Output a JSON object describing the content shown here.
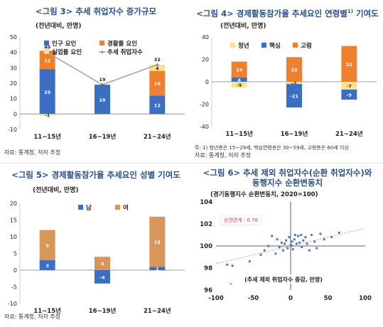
{
  "colors": {
    "blue": "#3a6fc4",
    "orange": "#ee8130",
    "yellow": "#fde28a",
    "tan": "#d9965b",
    "line": "#a6a6a6",
    "title": "#2a4f8a",
    "scatter": "#4e79c4",
    "trend": "#f4a58a",
    "annot": "#e04040"
  },
  "panels": [
    {
      "title": "<그림 3>  추세 취업자수 증가규모",
      "source": "자료: 통계청, 저자 추정",
      "chart_data": {
        "type": "bar",
        "stacked": true,
        "unit_label": "(전년대비, 만명)",
        "categories": [
          "11~15년",
          "16~19년",
          "21~24년"
        ],
        "ylim": [
          -10,
          50
        ],
        "yticks": [
          -10,
          0,
          10,
          20,
          30,
          40,
          50
        ],
        "series": [
          {
            "name": "인구 요인",
            "color": "#3a6fc4",
            "values": [
              29,
              19,
              12
            ],
            "labels": [
              "29",
              "19",
              "12"
            ]
          },
          {
            "name": "경활률 요인",
            "color": "#ee8130",
            "values": [
              12,
              0,
              16
            ],
            "labels": [
              "12",
              "",
              "16"
            ]
          },
          {
            "name": "실업률 요인",
            "color": "#fde28a",
            "values": [
              -1,
              0,
              4
            ],
            "labels": [
              "-1",
              "",
              "4"
            ]
          }
        ],
        "line": {
          "name": "추세 취업자수",
          "values": [
            40,
            19,
            32
          ]
        },
        "legend": [
          "인구 요인",
          "경활률 요인",
          "실업률 요인",
          "추세 취업자수"
        ]
      }
    },
    {
      "title": "<그림 4> 경제활동참가율 추세요인 연령별",
      "title_sup": "1)",
      "title_suffix": " 기여도",
      "note": "주: 1) 청년층은 15~29세, 핵심연령층은 30~59세, 고령층은 60세 이상",
      "source": "자료: 통계청, 저자 추정",
      "chart_data": {
        "type": "bar",
        "stacked": true,
        "unit_label": "(전년대비, 만명)",
        "categories": [
          "11~15년",
          "16~19년",
          "21~24년"
        ],
        "ylim": [
          -40,
          40
        ],
        "yticks": [
          -40,
          -20,
          0,
          20,
          40
        ],
        "series": [
          {
            "name": "청년",
            "color": "#fde28a",
            "values": [
              -5,
              -2,
              -7
            ],
            "labels": [
              "-5",
              "-2",
              "-7"
            ]
          },
          {
            "name": "핵심",
            "color": "#3a6fc4",
            "values": [
              4,
              -21,
              -9
            ],
            "labels": [
              "4",
              "-21",
              "-9"
            ]
          },
          {
            "name": "고령",
            "color": "#ee8130",
            "values": [
              14,
              22,
              32
            ],
            "labels": [
              "14",
              "22",
              "32"
            ]
          }
        ],
        "legend": [
          "청년",
          "핵심",
          "고령"
        ]
      }
    },
    {
      "title": "<그림 5> 경제활동참가율 추세요인 성별 기여도",
      "source": "자료: 통계청, 저자 추정",
      "chart_data": {
        "type": "bar",
        "stacked": true,
        "unit_label": "(전년대비, 만명)",
        "categories": [
          "11~15년",
          "16~19년",
          "21~24년"
        ],
        "ylim": [
          -10,
          20
        ],
        "yticks": [
          -10,
          -5,
          0,
          5,
          10,
          15,
          20
        ],
        "series": [
          {
            "name": "남",
            "color": "#3a6fc4",
            "values": [
              3,
              -4,
              1
            ],
            "labels": [
              "3",
              "-4",
              "1"
            ]
          },
          {
            "name": "여",
            "color": "#d9965b",
            "values": [
              9,
              4,
              15
            ],
            "labels": [
              "9",
              "4",
              "15"
            ]
          }
        ],
        "legend": [
          "남",
          "여"
        ]
      }
    },
    {
      "title": "<그림 6> 추세 제외 취업자수(순환 취업자수)와",
      "title2": "동행지수 순환변동치",
      "source": "자료: 통계청, 저자 추정",
      "chart_data": {
        "type": "scatter",
        "ylabel": "(경기동행지수 순환변동치, 2020=100)",
        "xlabel": "(추세 제외 취업자수 증감, 만명)",
        "annotation": "상관관계 : 0.76",
        "xlim": [
          -100,
          100
        ],
        "ylim": [
          96,
          104
        ],
        "xticks": [
          -100,
          -50,
          0,
          50,
          100
        ],
        "yticks": [
          96,
          98,
          100,
          102,
          104
        ],
        "trend": {
          "x": [
            -100,
            100
          ],
          "y": [
            98.4,
            101.6
          ]
        },
        "points": [
          [
            -72,
            96.8
          ],
          [
            -80,
            96.6
          ],
          [
            -85,
            98.3
          ],
          [
            -78,
            98.2
          ],
          [
            -55,
            98.6
          ],
          [
            -40,
            99.2
          ],
          [
            -35,
            99.6
          ],
          [
            -30,
            100.0
          ],
          [
            -20,
            99.3
          ],
          [
            -18,
            100.6
          ],
          [
            -15,
            99.9
          ],
          [
            -12,
            100.3
          ],
          [
            -10,
            99.6
          ],
          [
            -8,
            100.2
          ],
          [
            -6,
            100.5
          ],
          [
            -4,
            99.8
          ],
          [
            -2,
            100.8
          ],
          [
            0,
            100.1
          ],
          [
            2,
            100.4
          ],
          [
            3,
            99.7
          ],
          [
            5,
            100.6
          ],
          [
            6,
            101.0
          ],
          [
            8,
            100.2
          ],
          [
            10,
            100.9
          ],
          [
            12,
            100.3
          ],
          [
            14,
            101.0
          ],
          [
            15,
            99.9
          ],
          [
            17,
            100.5
          ],
          [
            20,
            100.8
          ],
          [
            22,
            100.2
          ],
          [
            25,
            99.6
          ],
          [
            28,
            101.0
          ],
          [
            32,
            100.4
          ],
          [
            35,
            99.8
          ],
          [
            40,
            101.1
          ],
          [
            45,
            100.6
          ],
          [
            55,
            100.8
          ],
          [
            65,
            101.2
          ],
          [
            -25,
            100.9
          ],
          [
            1,
            100.0
          ]
        ]
      }
    }
  ]
}
